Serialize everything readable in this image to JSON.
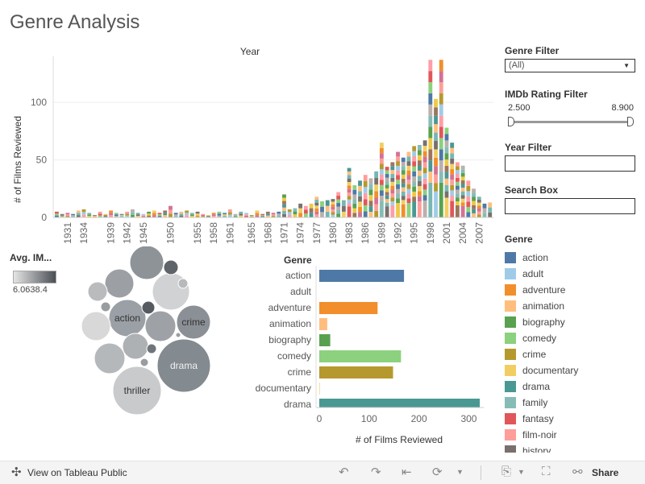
{
  "dashboard": {
    "title": "Genre Analysis"
  },
  "chart_data": [
    {
      "type": "bar",
      "stacked": true,
      "title": "Year",
      "ylabel": "# of Films Reviewed",
      "ylim": [
        0,
        140
      ],
      "yticks": [
        0,
        50,
        100
      ],
      "grid": true,
      "tick_labels": [
        "1931",
        "1934",
        "1939",
        "1942",
        "1945",
        "1950",
        "1955",
        "1958",
        "1961",
        "1965",
        "1968",
        "1971",
        "1974",
        "1977",
        "1980",
        "1983",
        "1986",
        "1989",
        "1992",
        "1995",
        "1998",
        "2001",
        "2004",
        "2007"
      ],
      "categories": [
        "1929",
        "1930",
        "1931",
        "1932",
        "1933",
        "1934",
        "1935",
        "1936",
        "1937",
        "1938",
        "1939",
        "1940",
        "1941",
        "1942",
        "1943",
        "1944",
        "1945",
        "1946",
        "1947",
        "1948",
        "1949",
        "1950",
        "1951",
        "1952",
        "1953",
        "1954",
        "1955",
        "1956",
        "1957",
        "1958",
        "1959",
        "1960",
        "1961",
        "1962",
        "1963",
        "1964",
        "1965",
        "1966",
        "1967",
        "1968",
        "1969",
        "1970",
        "1971",
        "1972",
        "1973",
        "1974",
        "1975",
        "1976",
        "1977",
        "1978",
        "1979",
        "1980",
        "1981",
        "1982",
        "1983",
        "1984",
        "1985",
        "1986",
        "1987",
        "1988",
        "1989",
        "1990",
        "1991",
        "1992",
        "1993",
        "1994",
        "1995",
        "1996",
        "1997",
        "1998",
        "1999",
        "2000",
        "2001",
        "2002",
        "2003",
        "2004",
        "2005",
        "2006",
        "2007",
        "2008",
        "2009"
      ],
      "totals": [
        5,
        3,
        4,
        3,
        6,
        7,
        4,
        2,
        5,
        3,
        6,
        4,
        3,
        5,
        7,
        4,
        3,
        5,
        6,
        4,
        6,
        10,
        4,
        5,
        6,
        4,
        5,
        3,
        2,
        4,
        5,
        4,
        7,
        3,
        5,
        4,
        2,
        6,
        3,
        5,
        4,
        5,
        20,
        7,
        8,
        12,
        10,
        12,
        18,
        14,
        15,
        16,
        22,
        15,
        43,
        28,
        32,
        37,
        34,
        40,
        65,
        44,
        48,
        57,
        52,
        57,
        62,
        63,
        67,
        137,
        103,
        137,
        78,
        65,
        48,
        45,
        32,
        25,
        18,
        12,
        13
      ]
    },
    {
      "type": "bar",
      "orientation": "horizontal",
      "title": "Genre",
      "xlabel": "# of Films Reviewed",
      "xlim": [
        0,
        330
      ],
      "xticks": [
        0,
        100,
        200,
        300
      ],
      "categories": [
        "action",
        "adult",
        "adventure",
        "animation",
        "biography",
        "comedy",
        "crime",
        "documentary",
        "drama"
      ],
      "values": [
        170,
        0,
        117,
        16,
        22,
        164,
        148,
        1,
        322
      ]
    },
    {
      "type": "scatter",
      "subtype": "packed-bubble",
      "title": "Avg. IM...",
      "color_legend": [
        "6.063",
        "8.4"
      ],
      "bubbles": [
        {
          "label": "action"
        },
        {
          "label": "crime"
        },
        {
          "label": "drama"
        },
        {
          "label": "thriller"
        },
        {
          "label": ""
        },
        {
          "label": ""
        },
        {
          "label": ""
        },
        {
          "label": ""
        },
        {
          "label": ""
        },
        {
          "label": ""
        },
        {
          "label": ""
        },
        {
          "label": ""
        },
        {
          "label": ""
        },
        {
          "label": ""
        },
        {
          "label": ""
        },
        {
          "label": ""
        },
        {
          "label": ""
        },
        {
          "label": ""
        },
        {
          "label": ""
        }
      ]
    }
  ],
  "filters": {
    "genre_label": "Genre Filter",
    "genre_value": "(All)",
    "rating_label": "IMDb Rating Filter",
    "rating_min": "2.500",
    "rating_max": "8.900",
    "year_label": "Year Filter",
    "search_label": "Search Box"
  },
  "legend": {
    "title": "Genre",
    "items": [
      {
        "label": "action",
        "color": "#4e79a7"
      },
      {
        "label": "adult",
        "color": "#a0cbe8"
      },
      {
        "label": "adventure",
        "color": "#f28e2b"
      },
      {
        "label": "animation",
        "color": "#ffbe7d"
      },
      {
        "label": "biography",
        "color": "#59a14f"
      },
      {
        "label": "comedy",
        "color": "#8cd17d"
      },
      {
        "label": "crime",
        "color": "#b6992d"
      },
      {
        "label": "documentary",
        "color": "#f1ce63"
      },
      {
        "label": "drama",
        "color": "#499894"
      },
      {
        "label": "family",
        "color": "#86bcb6"
      },
      {
        "label": "fantasy",
        "color": "#e15759"
      },
      {
        "label": "film-noir",
        "color": "#ff9d9a"
      },
      {
        "label": "history",
        "color": "#79706e"
      }
    ]
  },
  "footer": {
    "view_label": "View on Tableau Public",
    "share_label": "Share"
  }
}
